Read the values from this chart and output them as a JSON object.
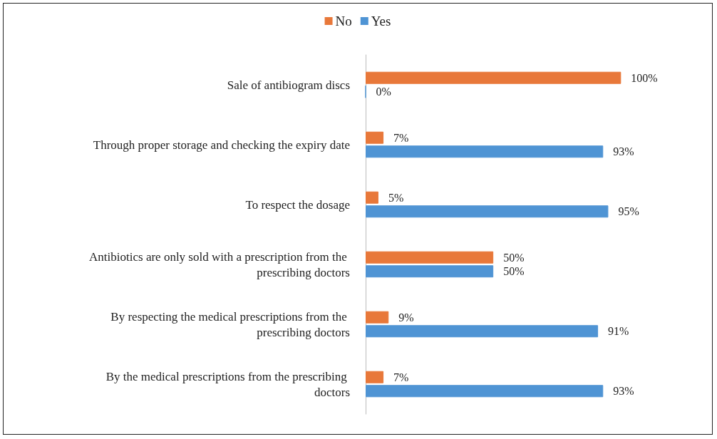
{
  "chart_data": {
    "type": "bar",
    "orientation": "horizontal",
    "categories": [
      "Sale of antibiogram discs",
      "Through proper storage and checking the expiry date",
      "To respect the dosage",
      "Antibiotics are only sold with a prescription from the prescribing doctors",
      "By respecting the medical prescriptions from the prescribing doctors",
      "By the medical prescriptions from the prescribing doctors"
    ],
    "series": [
      {
        "name": "Yes",
        "color": "#4f94d4",
        "values": [
          0,
          93,
          95,
          50,
          91,
          93
        ],
        "value_labels": [
          "0%",
          "93%",
          "95%",
          "50%",
          "91%",
          "93%"
        ]
      },
      {
        "name": "No",
        "color": "#e8783a",
        "values": [
          100,
          7,
          5,
          50,
          9,
          7
        ],
        "value_labels": [
          "100%",
          "7%",
          "5%",
          "50%",
          "9%",
          "7%"
        ]
      }
    ],
    "tick_labels": "y",
    "grid": false,
    "legend": "top"
  }
}
